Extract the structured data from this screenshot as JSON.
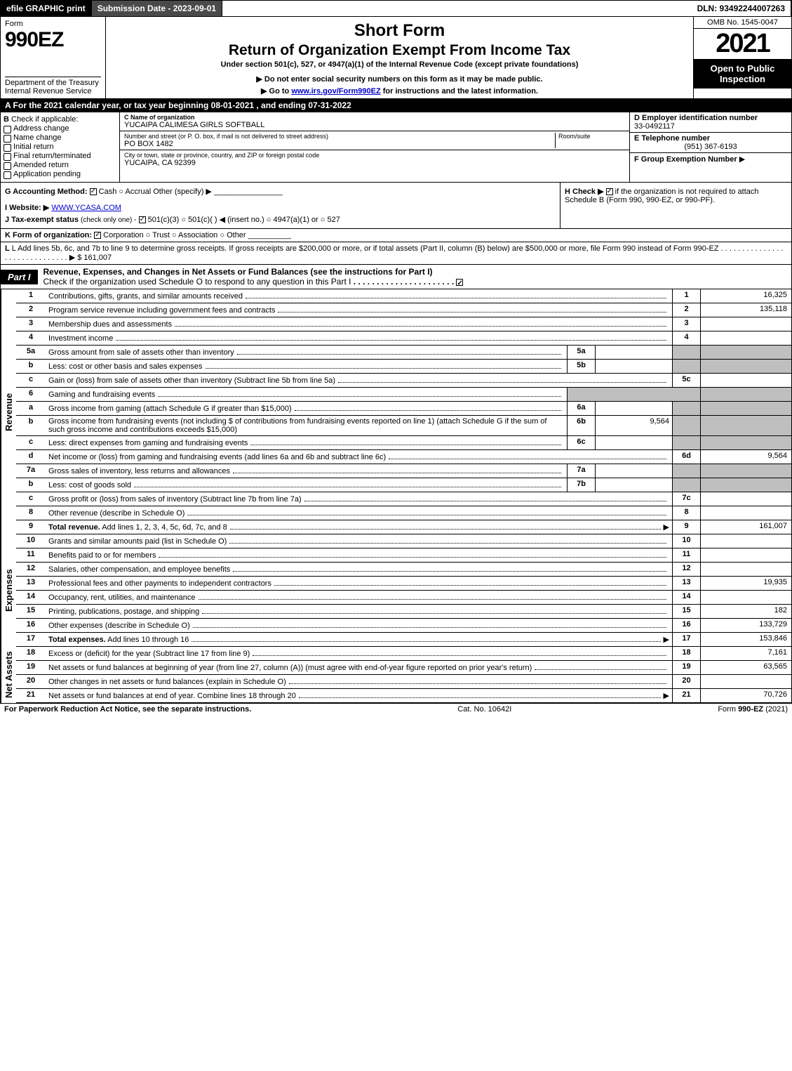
{
  "topbar": {
    "efile": "efile GRAPHIC print",
    "submission": "Submission Date - 2023-09-01",
    "dln": "DLN: 93492244007263"
  },
  "header": {
    "form_word": "Form",
    "form_no": "990EZ",
    "dept1": "Department of the Treasury",
    "dept2": "Internal Revenue Service",
    "short_form": "Short Form",
    "title": "Return of Organization Exempt From Income Tax",
    "subtitle": "Under section 501(c), 527, or 4947(a)(1) of the Internal Revenue Code (except private foundations)",
    "note1": "Do not enter social security numbers on this form as it may be made public.",
    "note2_pre": "Go to ",
    "note2_link": "www.irs.gov/Form990EZ",
    "note2_post": " for instructions and the latest information.",
    "omb": "OMB No. 1545-0047",
    "year": "2021",
    "open": "Open to Public Inspection"
  },
  "lineA": "A  For the 2021 calendar year, or tax year beginning 08-01-2021 , and ending 07-31-2022",
  "sectionB": {
    "label": "B",
    "check_if": "Check if applicable:",
    "opts": [
      "Address change",
      "Name change",
      "Initial return",
      "Final return/terminated",
      "Amended return",
      "Application pending"
    ]
  },
  "sectionC": {
    "c_label": "C Name of organization",
    "org_name": "YUCAIPA CALIMESA GIRLS SOFTBALL",
    "addr_label": "Number and street (or P. O. box, if mail is not delivered to street address)",
    "room_label": "Room/suite",
    "addr": "PO BOX 1482",
    "city_label": "City or town, state or province, country, and ZIP or foreign postal code",
    "city": "YUCAIPA, CA  92399"
  },
  "sectionDE": {
    "d_label": "D Employer identification number",
    "ein": "33-0492117",
    "e_label": "E Telephone number",
    "phone": "(951) 367-6193",
    "f_label": "F Group Exemption Number",
    "f_arrow": "▶"
  },
  "lineG": {
    "g_label": "G Accounting Method:",
    "cash": "Cash",
    "accrual": "Accrual",
    "other": "Other (specify) ▶"
  },
  "lineH": {
    "text": "H  Check ▶",
    "text2": "if the organization is not required to attach Schedule B (Form 990, 990-EZ, or 990-PF)."
  },
  "lineI": {
    "label": "I Website: ▶",
    "url": "WWW.YCASA.COM"
  },
  "lineJ": {
    "label": "J Tax-exempt status",
    "small": "(check only one) -",
    "opt1": "501(c)(3)",
    "opt2": "501(c)(  ) ◀ (insert no.)",
    "opt3": "4947(a)(1) or",
    "opt4": "527"
  },
  "lineK": {
    "label": "K Form of organization:",
    "corp": "Corporation",
    "trust": "Trust",
    "assoc": "Association",
    "other": "Other"
  },
  "lineL": {
    "text": "L Add lines 5b, 6c, and 7b to line 9 to determine gross receipts. If gross receipts are $200,000 or more, or if total assets (Part II, column (B) below) are $500,000 or more, file Form 990 instead of Form 990-EZ",
    "amount": "▶ $ 161,007"
  },
  "part1": {
    "tag": "Part I",
    "title": "Revenue, Expenses, and Changes in Net Assets or Fund Balances (see the instructions for Part I)",
    "check_line": "Check if the organization used Schedule O to respond to any question in this Part I"
  },
  "sideLabels": {
    "revenue": "Revenue",
    "expenses": "Expenses",
    "netassets": "Net Assets"
  },
  "rows": [
    {
      "n": "1",
      "desc": "Contributions, gifts, grants, and similar amounts received",
      "rn": "1",
      "val": "16,325"
    },
    {
      "n": "2",
      "desc": "Program service revenue including government fees and contracts",
      "rn": "2",
      "val": "135,118"
    },
    {
      "n": "3",
      "desc": "Membership dues and assessments",
      "rn": "3",
      "val": ""
    },
    {
      "n": "4",
      "desc": "Investment income",
      "rn": "4",
      "val": ""
    },
    {
      "n": "5a",
      "desc": "Gross amount from sale of assets other than inventory",
      "sub": "5a",
      "subval": "",
      "shaded": true
    },
    {
      "n": "b",
      "desc": "Less: cost or other basis and sales expenses",
      "sub": "5b",
      "subval": "",
      "shaded": true
    },
    {
      "n": "c",
      "desc": "Gain or (loss) from sale of assets other than inventory (Subtract line 5b from line 5a)",
      "rn": "5c",
      "val": ""
    },
    {
      "n": "6",
      "desc": "Gaming and fundraising events",
      "shaded": true,
      "noval": true
    },
    {
      "n": "a",
      "desc": "Gross income from gaming (attach Schedule G if greater than $15,000)",
      "sub": "6a",
      "subval": "",
      "shaded": true
    },
    {
      "n": "b",
      "desc": "Gross income from fundraising events (not including $                    of contributions from fundraising events reported on line 1) (attach Schedule G if the sum of such gross income and contributions exceeds $15,000)",
      "sub": "6b",
      "subval": "9,564",
      "shaded": true
    },
    {
      "n": "c",
      "desc": "Less: direct expenses from gaming and fundraising events",
      "sub": "6c",
      "subval": "",
      "shaded": true
    },
    {
      "n": "d",
      "desc": "Net income or (loss) from gaming and fundraising events (add lines 6a and 6b and subtract line 6c)",
      "rn": "6d",
      "val": "9,564"
    },
    {
      "n": "7a",
      "desc": "Gross sales of inventory, less returns and allowances",
      "sub": "7a",
      "subval": "",
      "shaded": true
    },
    {
      "n": "b",
      "desc": "Less: cost of goods sold",
      "sub": "7b",
      "subval": "",
      "shaded": true
    },
    {
      "n": "c",
      "desc": "Gross profit or (loss) from sales of inventory (Subtract line 7b from line 7a)",
      "rn": "7c",
      "val": ""
    },
    {
      "n": "8",
      "desc": "Other revenue (describe in Schedule O)",
      "rn": "8",
      "val": ""
    },
    {
      "n": "9",
      "desc": "Total revenue. Add lines 1, 2, 3, 4, 5c, 6d, 7c, and 8",
      "rn": "9",
      "val": "161,007",
      "bold": true,
      "arrow": true
    }
  ],
  "expRows": [
    {
      "n": "10",
      "desc": "Grants and similar amounts paid (list in Schedule O)",
      "rn": "10",
      "val": ""
    },
    {
      "n": "11",
      "desc": "Benefits paid to or for members",
      "rn": "11",
      "val": ""
    },
    {
      "n": "12",
      "desc": "Salaries, other compensation, and employee benefits",
      "rn": "12",
      "val": ""
    },
    {
      "n": "13",
      "desc": "Professional fees and other payments to independent contractors",
      "rn": "13",
      "val": "19,935"
    },
    {
      "n": "14",
      "desc": "Occupancy, rent, utilities, and maintenance",
      "rn": "14",
      "val": ""
    },
    {
      "n": "15",
      "desc": "Printing, publications, postage, and shipping",
      "rn": "15",
      "val": "182"
    },
    {
      "n": "16",
      "desc": "Other expenses (describe in Schedule O)",
      "rn": "16",
      "val": "133,729"
    },
    {
      "n": "17",
      "desc": "Total expenses. Add lines 10 through 16",
      "rn": "17",
      "val": "153,846",
      "bold": true,
      "arrow": true
    }
  ],
  "netRows": [
    {
      "n": "18",
      "desc": "Excess or (deficit) for the year (Subtract line 17 from line 9)",
      "rn": "18",
      "val": "7,161"
    },
    {
      "n": "19",
      "desc": "Net assets or fund balances at beginning of year (from line 27, column (A)) (must agree with end-of-year figure reported on prior year's return)",
      "rn": "19",
      "val": "63,565"
    },
    {
      "n": "20",
      "desc": "Other changes in net assets or fund balances (explain in Schedule O)",
      "rn": "20",
      "val": ""
    },
    {
      "n": "21",
      "desc": "Net assets or fund balances at end of year. Combine lines 18 through 20",
      "rn": "21",
      "val": "70,726",
      "arrow": true
    }
  ],
  "footer": {
    "left": "For Paperwork Reduction Act Notice, see the separate instructions.",
    "center": "Cat. No. 10642I",
    "right_pre": "Form ",
    "right_form": "990-EZ",
    "right_post": " (2021)"
  }
}
